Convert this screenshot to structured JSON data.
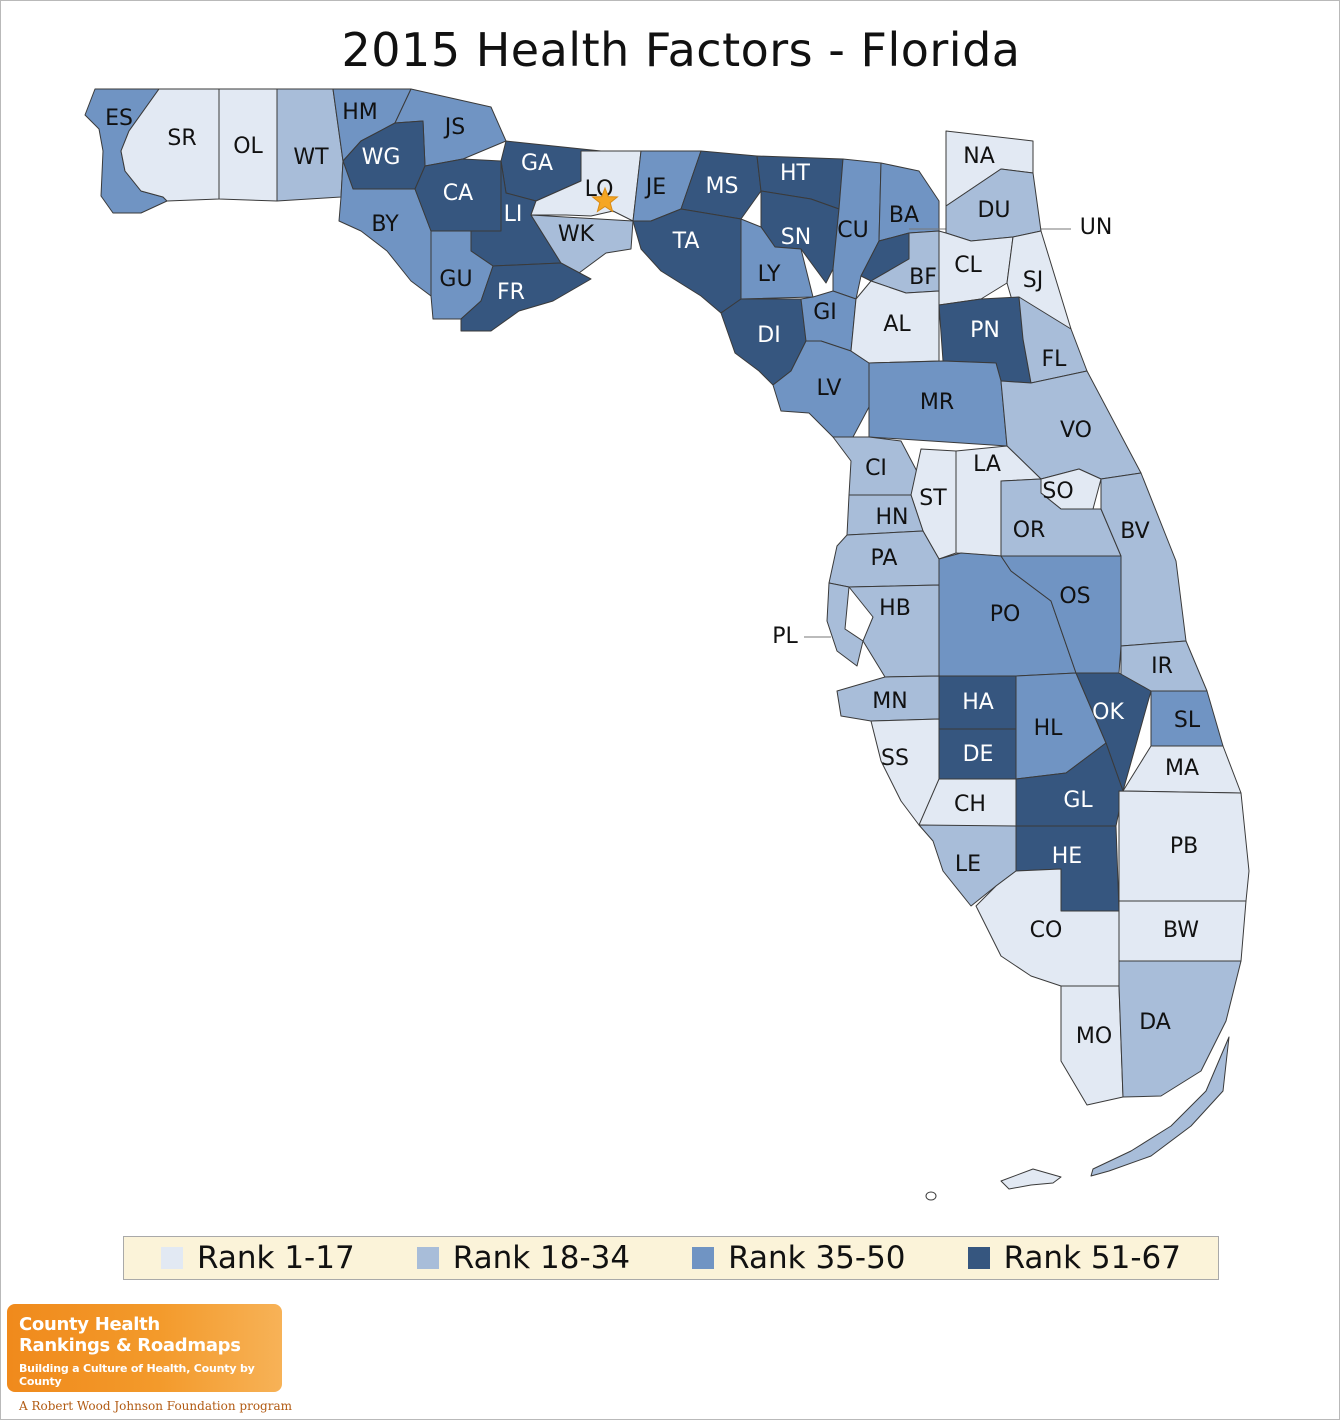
{
  "title": "2015 Health Factors - Florida",
  "ranks": {
    "1": {
      "label": "Rank 1-17",
      "color": "#e2e9f3"
    },
    "2": {
      "label": "Rank 18-34",
      "color": "#a8bdd9"
    },
    "3": {
      "label": "Rank 35-50",
      "color": "#7094c3"
    },
    "4": {
      "label": "Rank 51-67",
      "color": "#36567f"
    }
  },
  "counties": [
    {
      "code": "ES",
      "rank": 3
    },
    {
      "code": "SR",
      "rank": 1
    },
    {
      "code": "OL",
      "rank": 1
    },
    {
      "code": "WT",
      "rank": 2
    },
    {
      "code": "HM",
      "rank": 3
    },
    {
      "code": "JS",
      "rank": 3
    },
    {
      "code": "WG",
      "rank": 4
    },
    {
      "code": "BY",
      "rank": 3
    },
    {
      "code": "CA",
      "rank": 4
    },
    {
      "code": "GA",
      "rank": 4
    },
    {
      "code": "LI",
      "rank": 4
    },
    {
      "code": "LO",
      "rank": 1
    },
    {
      "code": "WK",
      "rank": 2
    },
    {
      "code": "GU",
      "rank": 3
    },
    {
      "code": "FR",
      "rank": 4
    },
    {
      "code": "JE",
      "rank": 3
    },
    {
      "code": "MS",
      "rank": 4
    },
    {
      "code": "TA",
      "rank": 4
    },
    {
      "code": "HT",
      "rank": 4
    },
    {
      "code": "SN",
      "rank": 4
    },
    {
      "code": "CU",
      "rank": 3
    },
    {
      "code": "LY",
      "rank": 3
    },
    {
      "code": "DI",
      "rank": 4
    },
    {
      "code": "GI",
      "rank": 3
    },
    {
      "code": "LV",
      "rank": 3
    },
    {
      "code": "BA",
      "rank": 3
    },
    {
      "code": "UN",
      "rank": 4
    },
    {
      "code": "BF",
      "rank": 2
    },
    {
      "code": "NA",
      "rank": 1
    },
    {
      "code": "DU",
      "rank": 2
    },
    {
      "code": "CL",
      "rank": 1
    },
    {
      "code": "SJ",
      "rank": 1
    },
    {
      "code": "AL",
      "rank": 1
    },
    {
      "code": "PN",
      "rank": 4
    },
    {
      "code": "FL",
      "rank": 2
    },
    {
      "code": "MR",
      "rank": 3
    },
    {
      "code": "VO",
      "rank": 2
    },
    {
      "code": "CI",
      "rank": 2
    },
    {
      "code": "LA",
      "rank": 1
    },
    {
      "code": "ST",
      "rank": 1
    },
    {
      "code": "SO",
      "rank": 1
    },
    {
      "code": "HN",
      "rank": 2
    },
    {
      "code": "OR",
      "rank": 2
    },
    {
      "code": "BV",
      "rank": 2
    },
    {
      "code": "PA",
      "rank": 2
    },
    {
      "code": "PO",
      "rank": 3
    },
    {
      "code": "OS",
      "rank": 3
    },
    {
      "code": "HB",
      "rank": 2
    },
    {
      "code": "PL",
      "rank": 2
    },
    {
      "code": "IR",
      "rank": 2
    },
    {
      "code": "MN",
      "rank": 2
    },
    {
      "code": "HA",
      "rank": 4
    },
    {
      "code": "HL",
      "rank": 3
    },
    {
      "code": "OK",
      "rank": 4
    },
    {
      "code": "SL",
      "rank": 3
    },
    {
      "code": "SS",
      "rank": 1
    },
    {
      "code": "DE",
      "rank": 4
    },
    {
      "code": "MA",
      "rank": 1
    },
    {
      "code": "CH",
      "rank": 1
    },
    {
      "code": "GL",
      "rank": 4
    },
    {
      "code": "PB",
      "rank": 1
    },
    {
      "code": "LE",
      "rank": 2
    },
    {
      "code": "HE",
      "rank": 4
    },
    {
      "code": "CO",
      "rank": 1
    },
    {
      "code": "BW",
      "rank": 1
    },
    {
      "code": "MO",
      "rank": 1
    },
    {
      "code": "DA",
      "rank": 2
    }
  ],
  "capital_marker": {
    "county": "LO",
    "icon": "star-icon",
    "color": "#f5a623"
  },
  "legend": [
    "1",
    "2",
    "3",
    "4"
  ],
  "logo": {
    "line1": "County Health",
    "line2": "Rankings & Roadmaps",
    "tagline": "Building a Culture of Health, County by County",
    "program": "A Robert Wood Johnson Foundation program"
  }
}
